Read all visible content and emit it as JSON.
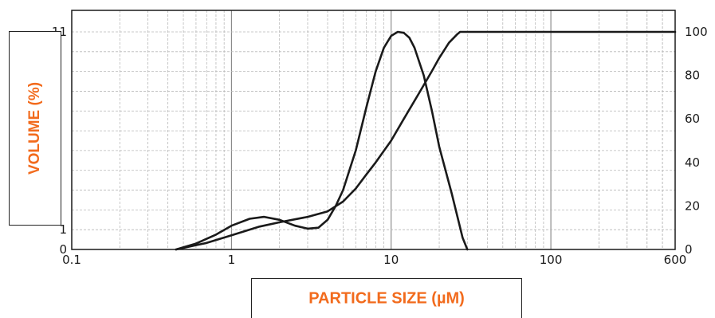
{
  "chart_data": {
    "type": "line",
    "title": "",
    "x_scale": "log",
    "xlim": [
      0.1,
      600
    ],
    "ylim_left": [
      0,
      11
    ],
    "ylim_right": [
      0,
      100
    ],
    "grid": true,
    "xlabel": "PARTICLE SIZE (µM)",
    "ylabel": "VOLUME (%)",
    "x_tick_labels": [
      "0.1",
      "1",
      "10",
      "100",
      "600"
    ],
    "x_tick_values": [
      0.1,
      1,
      10,
      100,
      600
    ],
    "y_left_tick_labels": [
      "0",
      "1",
      "11"
    ],
    "y_left_tick_values": [
      0,
      1,
      11
    ],
    "y_right_tick_labels": [
      "0",
      "20",
      "40",
      "60",
      "80",
      "100"
    ],
    "y_right_tick_values": [
      0,
      20,
      40,
      60,
      80,
      100
    ],
    "series": [
      {
        "axis": "left",
        "x": [
          0.45,
          0.6,
          0.8,
          1.0,
          1.3,
          1.6,
          2.0,
          2.5,
          3.0,
          3.5,
          4.0,
          4.5,
          5.0,
          6.0,
          7.0,
          8.0,
          9.0,
          10.0,
          11.0,
          12.0,
          13.0,
          14.0,
          16.0,
          18.0,
          20.0,
          24.0,
          28.0,
          30.0
        ],
        "values": [
          0.0,
          0.3,
          0.75,
          1.2,
          1.55,
          1.65,
          1.5,
          1.2,
          1.05,
          1.1,
          1.5,
          2.2,
          3.0,
          5.0,
          7.2,
          9.0,
          10.2,
          10.8,
          11.0,
          10.95,
          10.7,
          10.2,
          8.8,
          7.0,
          5.2,
          2.8,
          0.6,
          0.0
        ]
      },
      {
        "axis": "right",
        "x": [
          0.45,
          0.7,
          1.0,
          1.5,
          2.0,
          3.0,
          4.0,
          5.0,
          6.0,
          7.0,
          8.0,
          10.0,
          12.0,
          15.0,
          18.0,
          20.0,
          23.0,
          26.0,
          27.0,
          50.0,
          100.0,
          300.0,
          600.0
        ],
        "values": [
          0.0,
          3.0,
          6.5,
          10.5,
          12.5,
          15.0,
          17.5,
          22.0,
          28.0,
          34.5,
          40.0,
          50.0,
          60.0,
          72.0,
          82.0,
          88.0,
          95.0,
          99.0,
          100.0,
          100.0,
          100.0,
          100.0,
          100.0
        ]
      }
    ]
  }
}
